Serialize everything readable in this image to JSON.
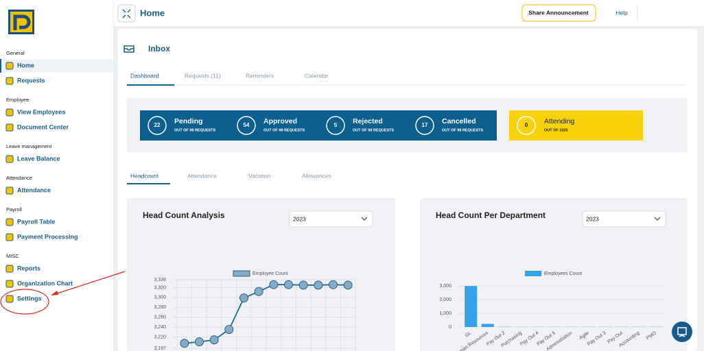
{
  "sidebar": {
    "sections": [
      {
        "title": "General",
        "items": [
          "Home",
          "Requests"
        ]
      },
      {
        "title": "Employee",
        "items": [
          "View Employees",
          "Document Center"
        ]
      },
      {
        "title": "Leave management",
        "items": [
          "Leave Balance"
        ]
      },
      {
        "title": "Attendance",
        "items": [
          "Attendance"
        ]
      },
      {
        "title": "Payroll",
        "items": [
          "Payroll Table",
          "Payment Processing"
        ]
      },
      {
        "title": "MISC",
        "items": [
          "Reports",
          "Organization Chart",
          "Settings"
        ]
      }
    ]
  },
  "header": {
    "title": "Home",
    "announce": "Share Announcement",
    "help": "Help"
  },
  "inbox": {
    "title": "Inbox",
    "tabs": [
      "Dashboard",
      "Requests (11)",
      "Reminders",
      "Calendar"
    ],
    "stats": [
      {
        "count": 22,
        "label": "Pending",
        "sub": "OUT OF 98 REQUESTS"
      },
      {
        "count": 54,
        "label": "Approved",
        "sub": "OUT OF 98 REQUESTS"
      },
      {
        "count": 5,
        "label": "Rejected",
        "sub": "OUT OF 98 REQUESTS"
      },
      {
        "count": 17,
        "label": "Cancelled",
        "sub": "OUT OF 98 REQUESTS"
      }
    ],
    "attending": {
      "count": 0,
      "label": "Attending",
      "sub": "OUT OF 3325"
    }
  },
  "subtabs": [
    "Headcount",
    "Attendance",
    "Vacation",
    "Allowances"
  ],
  "charts": [
    {
      "type": "line",
      "title": "Head Count Analysis",
      "year": "2023",
      "series": [
        {
          "name": "Employee Count",
          "color": "#1b6e94",
          "values": [
            3207,
            3210,
            3214,
            3235,
            3299,
            3312,
            3326,
            3326,
            3325,
            3325,
            3326,
            3325
          ]
        }
      ],
      "ylim": [
        3197,
        3336
      ],
      "yticks": [
        {
          "value": 3197,
          "label": "3,197"
        },
        {
          "value": 3220,
          "label": "3,220"
        },
        {
          "value": 3240,
          "label": "3,240"
        },
        {
          "value": 3260,
          "label": "3,260"
        },
        {
          "value": 3280,
          "label": "3,280"
        },
        {
          "value": 3300,
          "label": "3,300"
        },
        {
          "value": 3320,
          "label": "3,320"
        },
        {
          "value": 3336,
          "label": "3,336"
        }
      ],
      "grid": true
    },
    {
      "type": "bar",
      "title": "Head Count Per Department",
      "year": "2023",
      "categories": [
        "GL",
        "Human Resources",
        "Pay Out 2",
        "Purchasing",
        "Pay Out 4",
        "Pay Out 5",
        "Administration",
        "Agile",
        "Pay Out 3",
        "Pay Out",
        "Accounting",
        "PMO"
      ],
      "series": [
        {
          "name": "Employees Count",
          "color": "#36a2eb",
          "values": [
            2990,
            230,
            15,
            10,
            10,
            10,
            10,
            10,
            10,
            10,
            10,
            10
          ]
        }
      ],
      "ylim": [
        0,
        3000
      ],
      "yticks": [
        0,
        {
          "value": 1000,
          "label": "1,000"
        },
        {
          "value": 2000,
          "label": "2,000"
        },
        {
          "value": 3000,
          "label": "3,000"
        }
      ],
      "grid": true
    }
  ]
}
